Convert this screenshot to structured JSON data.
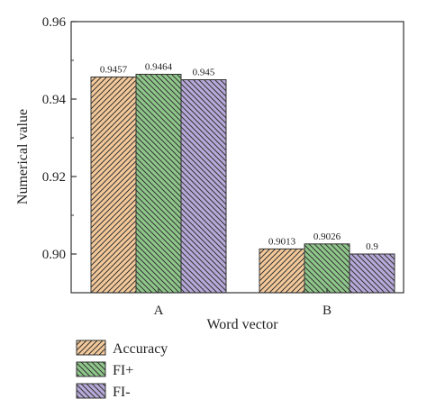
{
  "chart_data": {
    "type": "bar",
    "title": "",
    "xlabel": "Word vector",
    "ylabel": "Numerical value",
    "categories": [
      "A",
      "B"
    ],
    "ylim": [
      0.89,
      0.96
    ],
    "yticks": [
      "0.90",
      "0.92",
      "0.94",
      "0.96"
    ],
    "ytick_values": [
      0.9,
      0.92,
      0.94,
      0.96
    ],
    "grid": false,
    "legend_position": "bottom-left",
    "series": [
      {
        "name": "Accuracy",
        "values": [
          0.9457,
          0.9013
        ],
        "labels": [
          "0.9457",
          "0.9013"
        ],
        "color": "#f4c99a",
        "hatch": "forward-diagonal"
      },
      {
        "name": "FI+",
        "values": [
          0.9464,
          0.9026
        ],
        "labels": [
          "0.9464",
          "0.9026"
        ],
        "color": "#8fc78b",
        "hatch": "back-diagonal"
      },
      {
        "name": "FI-",
        "values": [
          0.945,
          0.9
        ],
        "labels": [
          "0.945",
          "0.9"
        ],
        "color": "#b7a9d9",
        "hatch": "back-diagonal"
      }
    ]
  }
}
